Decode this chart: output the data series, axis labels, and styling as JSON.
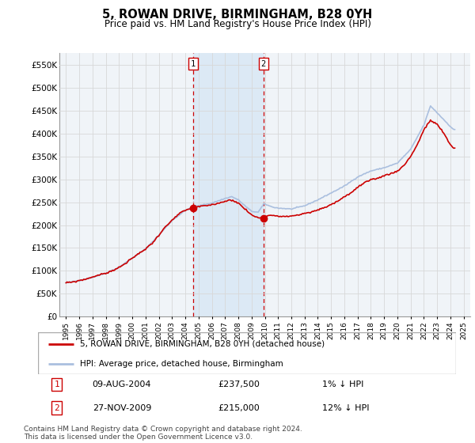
{
  "title": "5, ROWAN DRIVE, BIRMINGHAM, B28 0YH",
  "subtitle": "Price paid vs. HM Land Registry's House Price Index (HPI)",
  "hpi_label": "HPI: Average price, detached house, Birmingham",
  "property_label": "5, ROWAN DRIVE, BIRMINGHAM, B28 0YH (detached house)",
  "transaction1_date": "09-AUG-2004",
  "transaction1_price": 237500,
  "transaction1_hpi": "1% ↓ HPI",
  "transaction2_date": "27-NOV-2009",
  "transaction2_price": 215000,
  "transaction2_hpi": "12% ↓ HPI",
  "transaction1_year": 2004.6,
  "transaction2_year": 2009.9,
  "footnote": "Contains HM Land Registry data © Crown copyright and database right 2024.\nThis data is licensed under the Open Government Licence v3.0.",
  "ylim": [
    0,
    575000
  ],
  "yticks": [
    0,
    50000,
    100000,
    150000,
    200000,
    250000,
    300000,
    350000,
    400000,
    450000,
    500000,
    550000
  ],
  "ytick_labels": [
    "£0",
    "£50K",
    "£100K",
    "£150K",
    "£200K",
    "£250K",
    "£300K",
    "£350K",
    "£400K",
    "£450K",
    "£500K",
    "£550K"
  ],
  "xlim_start": 1994.5,
  "xlim_end": 2025.5,
  "hpi_color": "#aabfdf",
  "property_color": "#cc0000",
  "vline_color": "#cc0000",
  "highlight_color": "#dce9f5",
  "grid_color": "#d8d8d8",
  "background_color": "#f0f4f8"
}
